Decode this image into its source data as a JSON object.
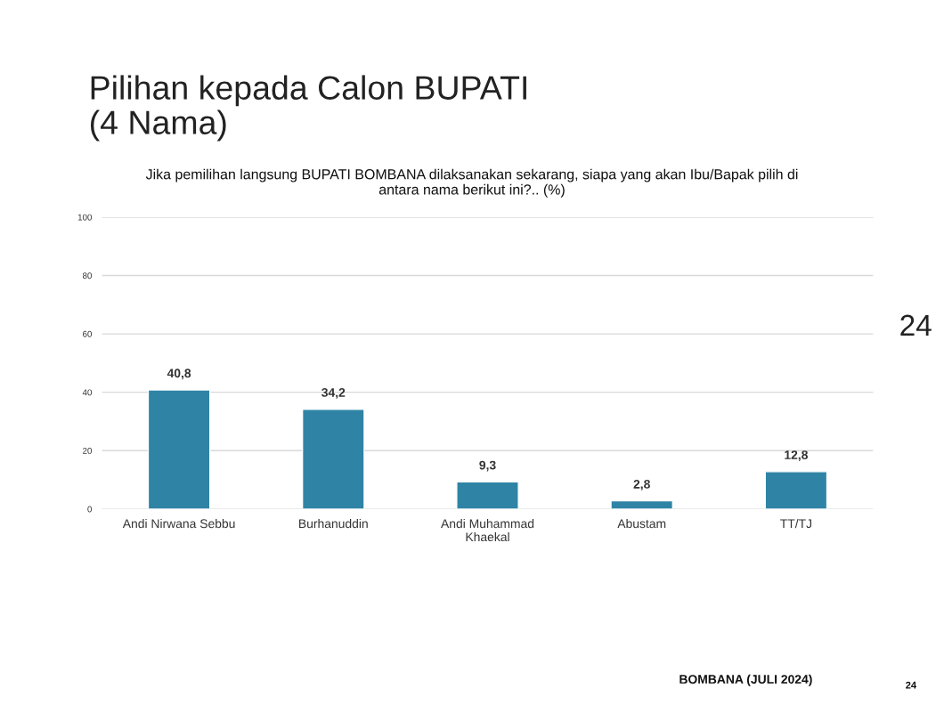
{
  "chart_data": {
    "type": "bar",
    "title": "Pilihan kepada Calon BUPATI\n(4 Nama)",
    "subtitle": "Jika pemilihan langsung BUPATI BOMBANA dilaksanakan sekarang, siapa yang akan Ibu/Bapak pilih di\nantara nama berikut ini?.. (%)",
    "categories": [
      "Andi Nirwana Sebbu",
      "Burhanuddin",
      "Andi Muhammad\nKhaekal",
      "Abustam",
      "TT/TJ"
    ],
    "values": [
      40.8,
      34.2,
      9.3,
      2.8,
      12.8
    ],
    "value_labels": [
      "40,8",
      "34,2",
      "9,3",
      "2,8",
      "12,8"
    ],
    "color": "#2f84a6",
    "ylim": [
      0,
      100
    ],
    "yticks": [
      0,
      20,
      40,
      60,
      80,
      100
    ],
    "grid": "y",
    "annotations": [
      "24",
      "BOMBANA (JULI 2024)",
      "24"
    ]
  }
}
